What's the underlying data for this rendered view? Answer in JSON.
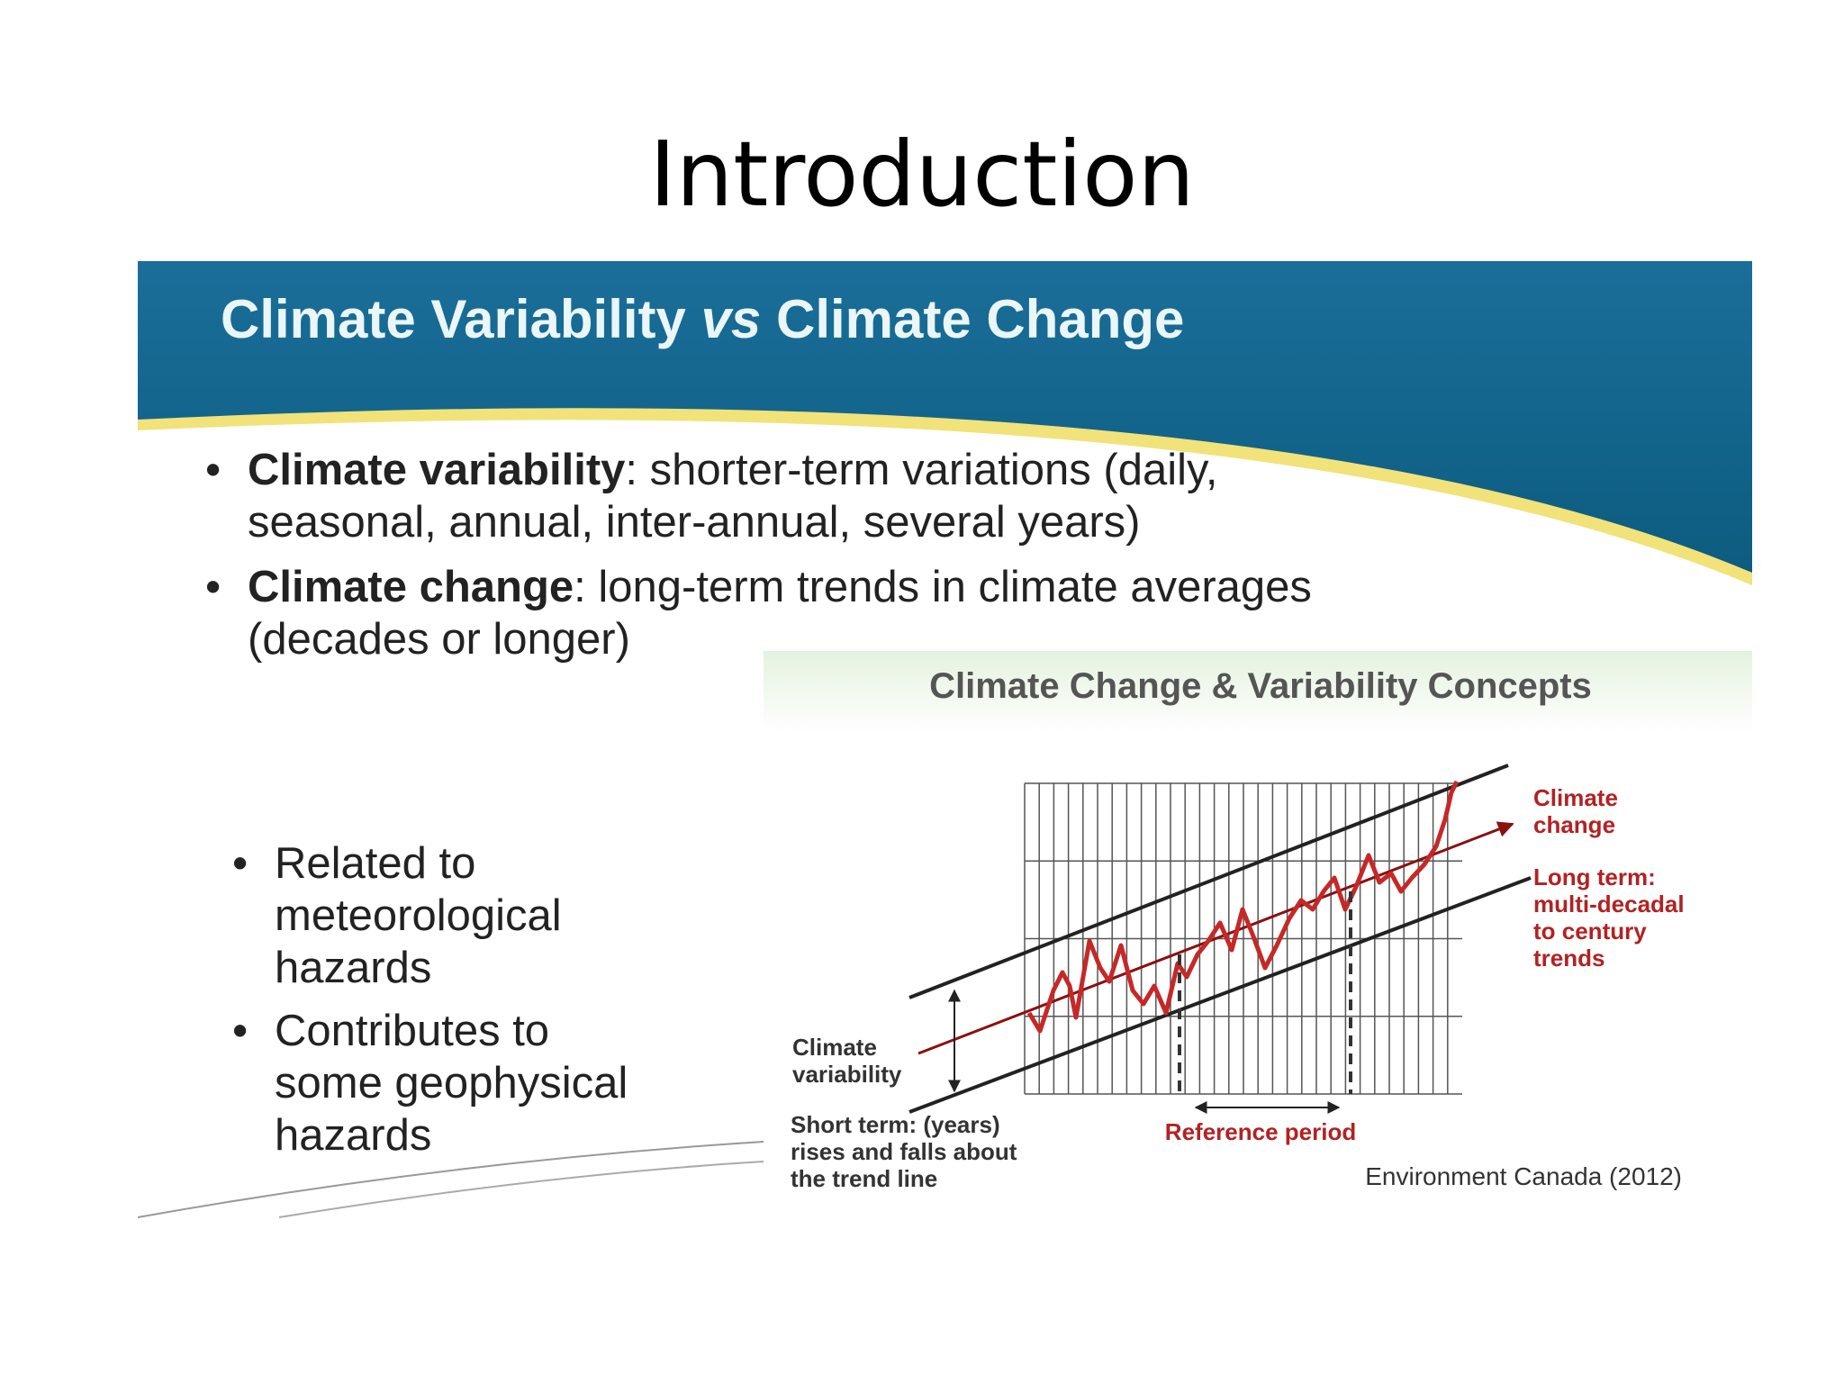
{
  "header": {
    "title": "Introduction"
  },
  "slide": {
    "heading": {
      "part1": "Climate Variability",
      "part2": "vs",
      "part3": "Climate Change"
    },
    "bullets": [
      {
        "term": "Climate variability",
        "lines": [
          ": shorter-term variations (daily,",
          "seasonal, annual, inter-annual, several years)"
        ]
      },
      {
        "term": "Climate change",
        "lines": [
          ": long-term trends in climate averages",
          "(decades or longer)"
        ]
      }
    ],
    "side_bullets": [
      [
        "Related to",
        "meteorological",
        "hazards"
      ],
      [
        "Contributes to",
        "some geophysical",
        "hazards"
      ]
    ],
    "diagram": {
      "title": "Climate Change & Variability Concepts",
      "climate_change_label": [
        "Climate",
        "change"
      ],
      "long_term_label": [
        "Long term:",
        "multi-decadal",
        "to century",
        "trends"
      ],
      "variability_label": [
        "Climate",
        "variability"
      ],
      "short_term_label": [
        "Short term: (years)",
        "rises and falls about",
        "the trend line"
      ],
      "reference_label": "Reference period",
      "source": "Environment Canada (2012)"
    }
  }
}
